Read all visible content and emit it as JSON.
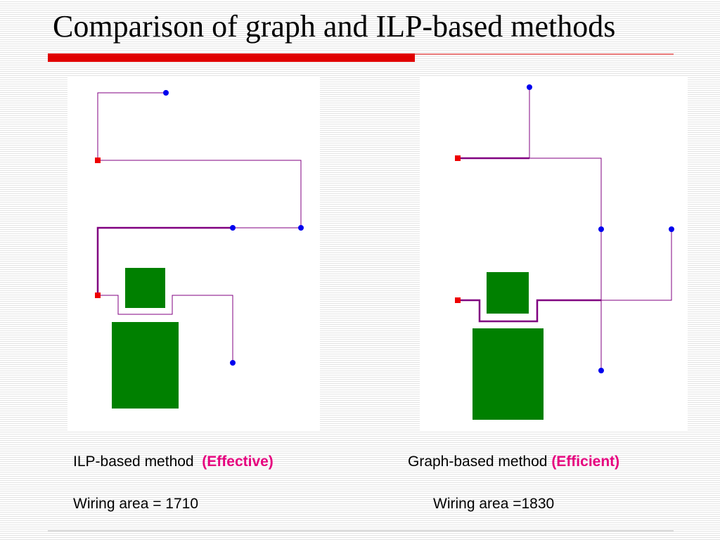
{
  "title": "Comparison of graph and ILP-based methods",
  "left": {
    "method": "ILP-based method",
    "tag": "(Effective)",
    "wiring_area": "Wiring area = 1710"
  },
  "right": {
    "method": "Graph-based method",
    "tag": "(Efficient)",
    "wiring_area": "Wiring area =1830"
  }
}
